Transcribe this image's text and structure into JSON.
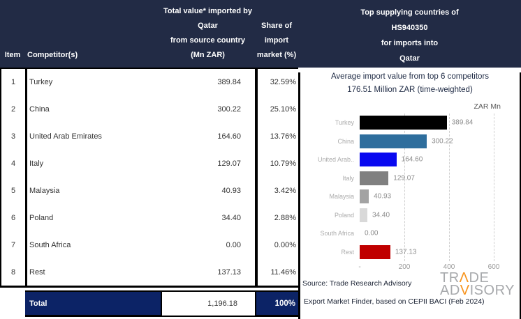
{
  "table": {
    "headers": {
      "item": "Item",
      "competitor": "Competitor(s)",
      "value_lines": [
        "Total value* imported by",
        "Qatar",
        "from source country",
        "(Mn ZAR)"
      ],
      "share_lines": [
        "Share of",
        "import",
        "market (%)"
      ]
    },
    "rows": [
      {
        "item": "1",
        "competitor": "Turkey",
        "value": "389.84",
        "share": "32.59%"
      },
      {
        "item": "2",
        "competitor": "China",
        "value": "300.22",
        "share": "25.10%"
      },
      {
        "item": "3",
        "competitor": "United Arab Emirates",
        "value": "164.60",
        "share": "13.76%"
      },
      {
        "item": "4",
        "competitor": "Italy",
        "value": "129.07",
        "share": "10.79%"
      },
      {
        "item": "5",
        "competitor": "Malaysia",
        "value": "40.93",
        "share": "3.42%"
      },
      {
        "item": "6",
        "competitor": "Poland",
        "value": "34.40",
        "share": "2.88%"
      },
      {
        "item": "7",
        "competitor": "South Africa",
        "value": "0.00",
        "share": "0.00%"
      },
      {
        "item": "8",
        "competitor": "Rest",
        "value": "137.13",
        "share": "11.46%"
      }
    ],
    "total": {
      "label": "Total",
      "value": "1,196.18",
      "share": "100%"
    }
  },
  "chart_header_lines": [
    "Top supplying countries of",
    "HS940350",
    "for imports into",
    "Qatar"
  ],
  "chart_data": {
    "type": "bar",
    "orientation": "horizontal",
    "title": "Average import value from top 6 competitors",
    "subtitle": "176.51 Million ZAR (time-weighted)",
    "unit_label": "ZAR Mn",
    "categories": [
      "Turkey",
      "China",
      "United Arab..",
      "Italy",
      "Malaysia",
      "Poland",
      "South Africa",
      "Rest"
    ],
    "values": [
      389.84,
      300.22,
      164.6,
      129.07,
      40.93,
      34.4,
      0.0,
      137.13
    ],
    "value_labels": [
      "389.84",
      "300.22",
      "164.60",
      "129.07",
      "40.93",
      "34.40",
      "0.00",
      "137.13"
    ],
    "bar_colors": [
      "#000000",
      "#2E6E9D",
      "#0909F0",
      "#808080",
      "#A3A3A3",
      "#D9D9D9",
      "#D9D9D9",
      "#C00000"
    ],
    "xlim": [
      0,
      600
    ],
    "x_ticks": [
      "-",
      "200",
      "400",
      "600"
    ],
    "x_tick_values": [
      0,
      200,
      400,
      600
    ],
    "gridlines": "dashed-vertical",
    "legend": "none"
  },
  "source": {
    "line1": "Source: Trade Research Advisory",
    "line2": "Export Market Finder, based on CEPII BACI (Feb 2024)"
  },
  "logo": {
    "trade_pre": "TR",
    "trade_accent": "Λ",
    "trade_post": "DE",
    "advisory_pre": "AD",
    "advisory_accent": "V",
    "advisory_post": "ISORY"
  },
  "colors": {
    "header_bg": "#222B45",
    "total_bg": "#0C2366",
    "logo_gray": "#A7A9AC",
    "logo_orange": "#F7941D",
    "bar_turkey": "#000000",
    "bar_china": "#2E6E9D",
    "bar_uae": "#0909F0",
    "bar_rest": "#C00000"
  }
}
